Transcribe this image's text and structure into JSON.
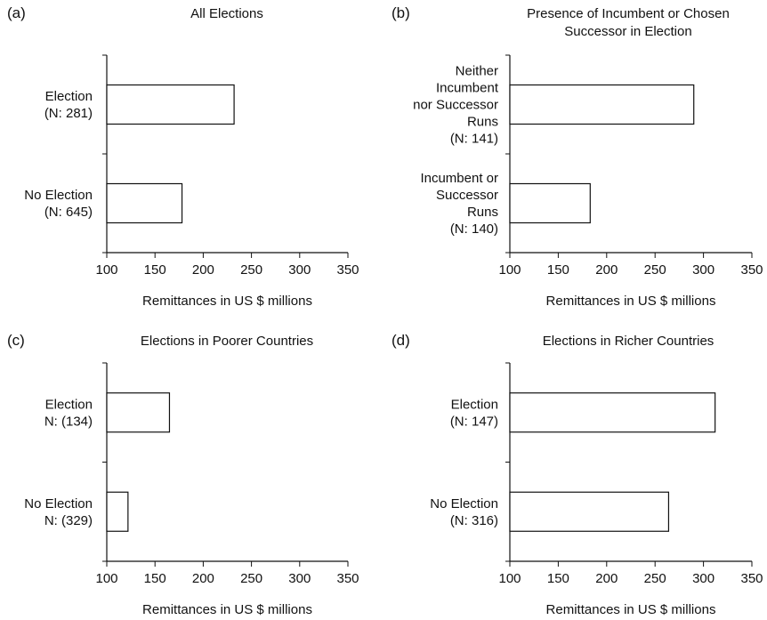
{
  "chart_data": [
    {
      "panel": "(a)",
      "title": "All Elections",
      "type": "bar",
      "orientation": "horizontal",
      "categories": [
        [
          "Election",
          "(N: 281)"
        ],
        [
          "No Election",
          "(N: 645)"
        ]
      ],
      "values": [
        232,
        178
      ],
      "xlabel": "Remittances in US $ millions",
      "xlim": [
        100,
        350
      ],
      "xticks": [
        100,
        150,
        200,
        250,
        300,
        350
      ],
      "grid": false
    },
    {
      "panel": "(b)",
      "title": "Presence of Incumbent or Chosen Successor in Election",
      "title_lines": [
        "Presence of Incumbent or Chosen",
        "Successor in Election"
      ],
      "type": "bar",
      "orientation": "horizontal",
      "categories": [
        [
          "Neither",
          "Incumbent",
          "nor Successor",
          "Runs",
          "(N: 141)"
        ],
        [
          "Incumbent or",
          "Successor",
          "Runs",
          "(N: 140)"
        ]
      ],
      "values": [
        290,
        183
      ],
      "xlabel": "Remittances in US $ millions",
      "xlim": [
        100,
        350
      ],
      "xticks": [
        100,
        150,
        200,
        250,
        300,
        350
      ],
      "grid": false
    },
    {
      "panel": "(c)",
      "title": "Elections in Poorer Countries",
      "type": "bar",
      "orientation": "horizontal",
      "categories": [
        [
          "Election",
          "N: (134)"
        ],
        [
          "No Election",
          "N: (329)"
        ]
      ],
      "values": [
        165,
        122
      ],
      "xlabel": "Remittances in US $ millions",
      "xlim": [
        100,
        350
      ],
      "xticks": [
        100,
        150,
        200,
        250,
        300,
        350
      ],
      "grid": false
    },
    {
      "panel": "(d)",
      "title": "Elections in Richer Countries",
      "type": "bar",
      "orientation": "horizontal",
      "categories": [
        [
          "Election",
          "(N: 147)"
        ],
        [
          "No Election",
          "(N: 316)"
        ]
      ],
      "values": [
        312,
        264
      ],
      "xlabel": "Remittances in US $ millions",
      "xlim": [
        100,
        350
      ],
      "xticks": [
        100,
        150,
        200,
        250,
        300,
        350
      ],
      "grid": false
    }
  ]
}
